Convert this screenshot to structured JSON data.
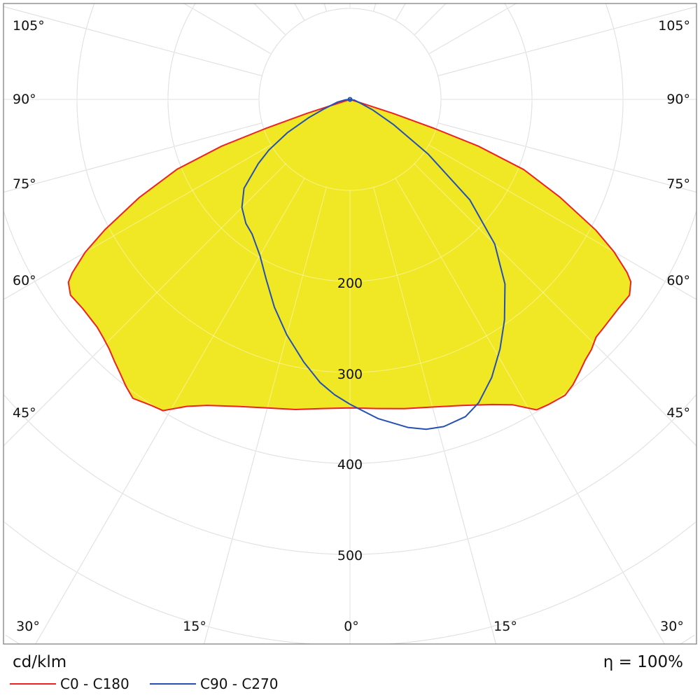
{
  "chart_data": {
    "type": "polar",
    "unit_label": "cd/klm",
    "efficiency_label": "η = 100%",
    "radial_ticks": [
      100,
      200,
      300,
      400,
      500,
      600,
      700
    ],
    "radial_tick_labels": [
      "200",
      "300",
      "400",
      "500"
    ],
    "angle_step_deg": 15,
    "angle_labels_left": [
      "105°",
      "90°",
      "75°",
      "60°",
      "45°"
    ],
    "angle_labels_right": [
      "105°",
      "90°",
      "75°",
      "60°",
      "45°"
    ],
    "angle_labels_bottom": [
      "30°",
      "15°",
      "0°",
      "15°",
      "30°"
    ],
    "grid": true,
    "legend_placement": "bottom-left",
    "fill_color": "#f0e824",
    "series": [
      {
        "name": "C0 - C180",
        "color": "#ee2222",
        "filled": true,
        "C0": [
          [
            0,
            339
          ],
          [
            5,
            341
          ],
          [
            10,
            345
          ],
          [
            15,
            350
          ],
          [
            20,
            358
          ],
          [
            25,
            370
          ],
          [
            28,
            380
          ],
          [
            31,
            398
          ],
          [
            33,
            400
          ],
          [
            36,
            402
          ],
          [
            38,
            398
          ],
          [
            40,
            392
          ],
          [
            42,
            386
          ],
          [
            44,
            382
          ],
          [
            46,
            376
          ],
          [
            48,
            375
          ],
          [
            52,
            374
          ],
          [
            55,
            375
          ],
          [
            57,
            368
          ],
          [
            58,
            359
          ],
          [
            60,
            335
          ],
          [
            62,
            306
          ],
          [
            65,
            255
          ],
          [
            68,
            206
          ],
          [
            70,
            150
          ],
          [
            71,
            98
          ],
          [
            72,
            50
          ],
          [
            73,
            0
          ]
        ],
        "C180": [
          [
            0,
            339
          ],
          [
            5,
            341
          ],
          [
            10,
            346
          ],
          [
            15,
            351
          ],
          [
            20,
            359
          ],
          [
            25,
            371
          ],
          [
            28,
            382
          ],
          [
            31,
            399
          ],
          [
            33,
            401
          ],
          [
            36,
            406
          ],
          [
            38,
            400
          ],
          [
            40,
            393
          ],
          [
            42,
            387
          ],
          [
            44,
            381
          ],
          [
            46,
            377
          ],
          [
            48,
            374
          ],
          [
            52,
            373
          ],
          [
            55,
            375
          ],
          [
            57,
            369
          ],
          [
            58,
            360
          ],
          [
            60,
            336
          ],
          [
            62,
            305
          ],
          [
            65,
            256
          ],
          [
            68,
            205
          ],
          [
            70,
            150
          ],
          [
            71,
            98
          ],
          [
            72,
            50
          ],
          [
            73,
            0
          ]
        ]
      },
      {
        "name": "C90 - C270",
        "color": "#2450b4",
        "filled": false,
        "C90": [
          [
            0,
            335
          ],
          [
            5,
            352
          ],
          [
            10,
            366
          ],
          [
            13,
            372
          ],
          [
            16,
            374
          ],
          [
            20,
            371
          ],
          [
            23,
            362
          ],
          [
            27,
            343
          ],
          [
            31,
            320
          ],
          [
            35,
            296
          ],
          [
            40,
            265
          ],
          [
            45,
            225
          ],
          [
            50,
            172
          ],
          [
            55,
            105
          ],
          [
            60,
            55
          ],
          [
            65,
            28
          ],
          [
            70,
            12
          ],
          [
            80,
            5
          ],
          [
            90,
            0
          ]
        ],
        "C270": [
          [
            0,
            335
          ],
          [
            3,
            325
          ],
          [
            6,
            313
          ],
          [
            10,
            293
          ],
          [
            15,
            268
          ],
          [
            20,
            243
          ],
          [
            25,
            218
          ],
          [
            30,
            198
          ],
          [
            33,
            190
          ],
          [
            36,
            183
          ],
          [
            40,
            178
          ],
          [
            45,
            168
          ],
          [
            50,
            152
          ],
          [
            55,
            123
          ],
          [
            58,
            105
          ],
          [
            62,
            78
          ],
          [
            66,
            50
          ],
          [
            70,
            30
          ],
          [
            78,
            14
          ],
          [
            85,
            5
          ],
          [
            90,
            0
          ]
        ]
      }
    ]
  }
}
